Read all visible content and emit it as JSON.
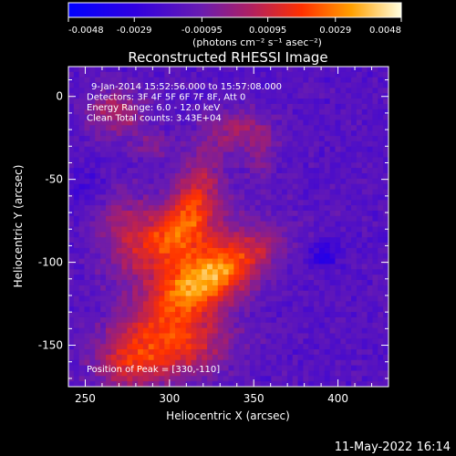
{
  "chart_data": {
    "type": "heatmap",
    "title": "Reconstructed RHESSI Image",
    "xlabel": "Heliocentric X (arcsec)",
    "ylabel": "Heliocentric Y (arcsec)",
    "xlim": [
      240,
      430
    ],
    "ylim": [
      -175,
      18
    ],
    "x_ticks": [
      250,
      300,
      350,
      400
    ],
    "y_ticks": [
      0,
      -50,
      -100,
      -150
    ],
    "colorbar": {
      "ticks": [
        "-0.0048",
        "-0.0029",
        "-0.00095",
        "0.00095",
        "0.0029",
        "0.0048"
      ],
      "range": [
        -0.0048,
        0.0048
      ],
      "unit": "(photons cm⁻² s⁻¹ asec⁻²)"
    },
    "info_lines": [
      "9-Jan-2014 15:52:56.000 to 15:57:08.000",
      "Detectors: 3F 4F 5F 6F 7F 8F, Att 0",
      "Energy Range: 6.0 - 12.0 keV",
      "Clean     Total counts: 3.43E+04"
    ],
    "peak_label": "Position of Peak = [330,-110]",
    "peak": [
      330,
      -110
    ],
    "colors": {
      "background": "#000000",
      "axes": "#ffffff"
    }
  },
  "footer": {
    "date": "11-May-2022 16:14"
  }
}
